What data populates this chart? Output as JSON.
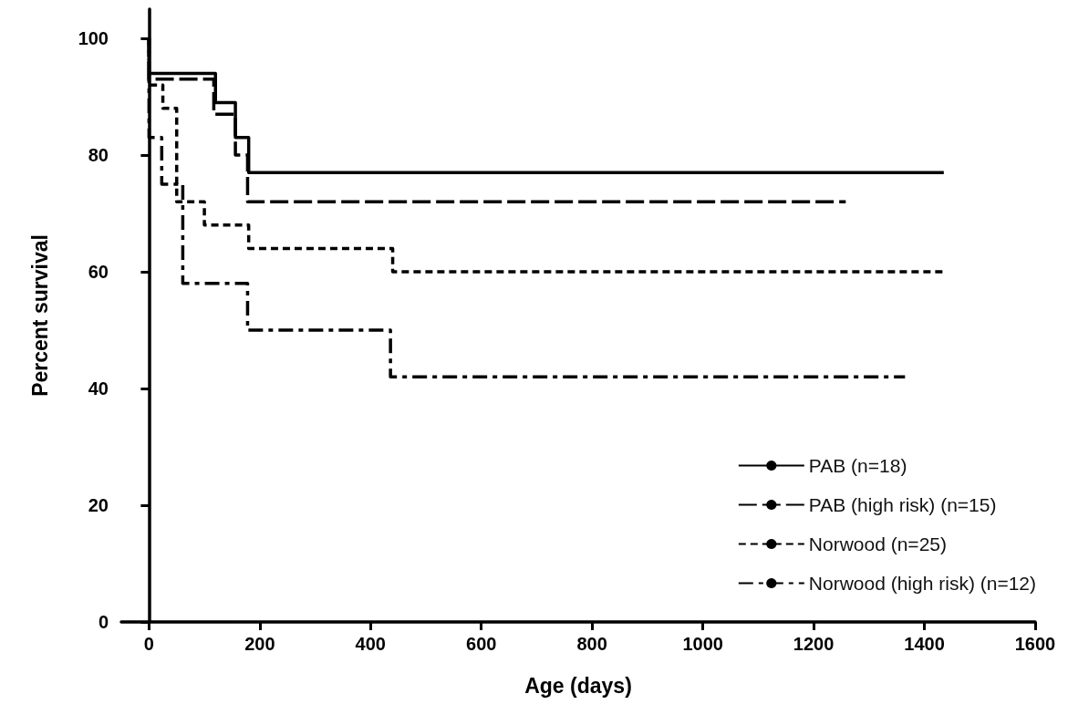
{
  "chart_data": {
    "type": "step",
    "xlabel": "Age (days)",
    "ylabel": "Percent survival",
    "xlim": [
      -50,
      1600
    ],
    "xticks": [
      0,
      200,
      400,
      600,
      800,
      1000,
      1200,
      1400,
      1600
    ],
    "ylim": [
      0,
      105
    ],
    "yticks": [
      0,
      20,
      40,
      60,
      80,
      100
    ],
    "grid": false,
    "legend": "bottom right",
    "marker": "none",
    "series": [
      {
        "name": "PAB (n=18)",
        "color": "#000000",
        "line_style": "solid",
        "x": [
          0,
          0,
          120,
          156,
          180,
          1435
        ],
        "values": [
          100,
          94,
          89,
          83,
          77,
          77
        ]
      },
      {
        "name": "PAB (high risk) (n=15)",
        "color": "#000000",
        "line_style": "dashed",
        "x": [
          0,
          0,
          117,
          156,
          178,
          1258
        ],
        "values": [
          100,
          93,
          87,
          80,
          72,
          72
        ]
      },
      {
        "name": "Norwood (n=25)",
        "color": "#000000",
        "line_style": "dotted",
        "x": [
          0,
          0,
          25,
          50,
          100,
          180,
          440,
          1435
        ],
        "values": [
          100,
          92,
          88,
          72,
          68,
          64,
          60,
          60
        ]
      },
      {
        "name": "Norwood (high risk) (n=12)",
        "color": "#000000",
        "line_style": "dashed",
        "x": [
          0,
          0,
          0,
          23,
          61,
          178,
          436,
          1365
        ],
        "values": [
          100,
          92,
          83,
          75,
          58,
          50,
          42,
          42
        ]
      }
    ]
  }
}
